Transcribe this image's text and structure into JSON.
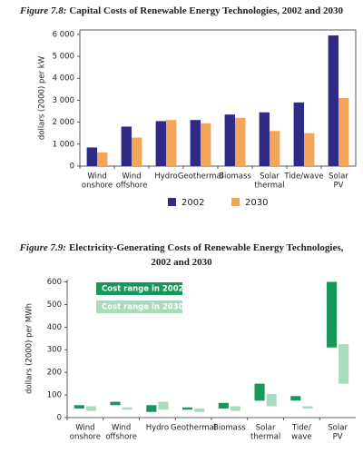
{
  "chart_data": [
    {
      "type": "bar",
      "figure_label": "Figure 7.8:",
      "title": [
        "Capital Costs of Renewable Energy Technologies, 2002 and 2030"
      ],
      "y_label": "dollars (2000) per kW",
      "categories": [
        [
          "Wind",
          "onshore"
        ],
        [
          "Wind",
          "offshore"
        ],
        [
          "Hydro"
        ],
        [
          "Geothermal"
        ],
        [
          "Biomass"
        ],
        [
          "Solar",
          "thermal"
        ],
        [
          "Tide/wave"
        ],
        [
          "Solar",
          "PV"
        ]
      ],
      "series": [
        {
          "name": "2002",
          "color": "#2e2a86",
          "values": [
            850,
            1800,
            2050,
            2100,
            2350,
            2450,
            2900,
            5950
          ]
        },
        {
          "name": "2030",
          "color": "#f5a558",
          "values": [
            620,
            1300,
            2100,
            1950,
            2200,
            1600,
            1500,
            3100
          ]
        }
      ],
      "ylim": [
        0,
        6200
      ],
      "yticks": [
        0,
        {
          "value": 1000,
          "label": "1 000"
        },
        {
          "value": 2000,
          "label": "2 000"
        },
        {
          "value": 3000,
          "label": "3 000"
        },
        {
          "value": 4000,
          "label": "4 000"
        },
        {
          "value": 5000,
          "label": "5 000"
        },
        {
          "value": 6000,
          "label": "6 000"
        }
      ],
      "legend": "bottom"
    },
    {
      "type": "range_bar",
      "figure_label": "Figure 7.9:",
      "title": [
        "Electricity-Generating Costs of Renewable Energy Technologies,",
        "2002 and 2030"
      ],
      "y_label": "dollars (2000) per MWh",
      "categories": [
        [
          "Wind",
          "onshore"
        ],
        [
          "Wind",
          "offshore"
        ],
        [
          "Hydro"
        ],
        [
          "Geothermal"
        ],
        [
          "Biomass"
        ],
        [
          "Solar",
          "thermal"
        ],
        [
          "Tide/",
          "wave"
        ],
        [
          "Solar",
          "PV"
        ]
      ],
      "series": [
        {
          "name": "Cost range in 2002",
          "color": "#17975a",
          "values": [
            [
              40,
              55
            ],
            [
              55,
              70
            ],
            [
              25,
              55
            ],
            [
              35,
              45
            ],
            [
              40,
              65
            ],
            [
              75,
              150
            ],
            [
              75,
              95
            ],
            [
              310,
              600
            ]
          ]
        },
        {
          "name": "Cost range in 2030",
          "color": "#a9dcbd",
          "values": [
            [
              30,
              50
            ],
            [
              35,
              45
            ],
            [
              35,
              70
            ],
            [
              25,
              40
            ],
            [
              30,
              50
            ],
            [
              50,
              105
            ],
            [
              40,
              50
            ],
            [
              150,
              325
            ]
          ]
        }
      ],
      "ylim": [
        0,
        610
      ],
      "yticks": [
        0,
        100,
        200,
        300,
        400,
        500,
        600
      ],
      "legend": "top-left"
    }
  ]
}
